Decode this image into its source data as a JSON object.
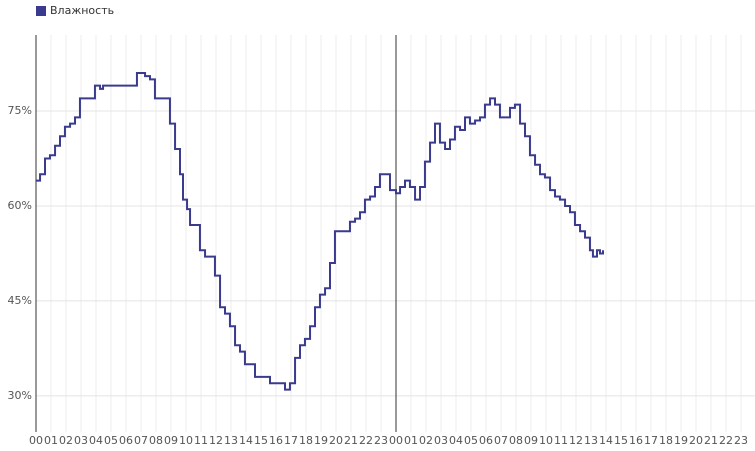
{
  "chart_data": {
    "type": "line",
    "step": true,
    "grid": true,
    "legend": "top-left",
    "series": [
      {
        "name": "Влажность",
        "color": "#3a3a8e",
        "x": [
          0,
          0.27,
          0.6,
          0.93,
          1.27,
          1.6,
          1.93,
          2.27,
          2.6,
          2.93,
          3.47,
          3.93,
          4.27,
          4.47,
          5.93,
          6.27,
          6.73,
          7.27,
          7.6,
          7.93,
          8.6,
          8.93,
          9.27,
          9.6,
          9.8,
          10.07,
          10.27,
          10.6,
          10.93,
          11.27,
          11.6,
          11.93,
          12.27,
          12.6,
          12.93,
          13.27,
          13.6,
          13.93,
          14.27,
          14.6,
          15.27,
          15.6,
          15.93,
          16.27,
          16.6,
          16.93,
          17.27,
          17.6,
          17.93,
          18.27,
          18.6,
          18.93,
          19.27,
          19.6,
          19.93,
          20.27,
          20.6,
          20.93,
          21.27,
          21.6,
          21.93,
          22.27,
          22.6,
          22.93,
          23.27,
          23.6,
          24,
          24.27,
          24.6,
          24.93,
          25.27,
          25.6,
          25.93,
          26.27,
          26.6,
          26.93,
          27.27,
          27.6,
          27.93,
          28.27,
          28.6,
          28.93,
          29.27,
          29.6,
          29.93,
          30.27,
          30.6,
          30.93,
          31.27,
          31.6,
          31.93,
          32.27,
          32.6,
          32.93,
          33.27,
          33.6,
          33.93,
          34.27,
          34.6,
          34.93,
          35.27,
          35.6,
          35.93,
          36.27,
          36.6,
          36.93,
          37.13,
          37.4,
          37.6,
          37.8
        ],
        "values": [
          64,
          65,
          67.5,
          68,
          69.5,
          71,
          72.5,
          73,
          74,
          77,
          77,
          79,
          78.5,
          79,
          79,
          79,
          81,
          80.5,
          80,
          77,
          77,
          73,
          69,
          65,
          61,
          59.5,
          57,
          57,
          53,
          52,
          52,
          49,
          44,
          43,
          41,
          38,
          37,
          35,
          35,
          33,
          33,
          32,
          32,
          32,
          31,
          32,
          36,
          38,
          39,
          41,
          44,
          46,
          47,
          51,
          56,
          56,
          56,
          57.5,
          58,
          59,
          61,
          61.5,
          63,
          65,
          65,
          62.5,
          62,
          63,
          64,
          63,
          61,
          63,
          67,
          70,
          73,
          70,
          69,
          70.5,
          72.5,
          72,
          74,
          73,
          73.5,
          74,
          76,
          77,
          76,
          74,
          74,
          75.5,
          76,
          73,
          71,
          68,
          66.5,
          65,
          64.5,
          62.5,
          61.5,
          61,
          60,
          59,
          57,
          56,
          55,
          53,
          52,
          53,
          52.5,
          53
        ]
      }
    ],
    "xlim": [
      0,
      48
    ],
    "xticks": [
      {
        "value": 0,
        "label": "00"
      },
      {
        "value": 1,
        "label": "01"
      },
      {
        "value": 2,
        "label": "02"
      },
      {
        "value": 3,
        "label": "03"
      },
      {
        "value": 4,
        "label": "04"
      },
      {
        "value": 5,
        "label": "05"
      },
      {
        "value": 6,
        "label": "06"
      },
      {
        "value": 7,
        "label": "07"
      },
      {
        "value": 8,
        "label": "08"
      },
      {
        "value": 9,
        "label": "09"
      },
      {
        "value": 10,
        "label": "10"
      },
      {
        "value": 11,
        "label": "11"
      },
      {
        "value": 12,
        "label": "12"
      },
      {
        "value": 13,
        "label": "13"
      },
      {
        "value": 14,
        "label": "14"
      },
      {
        "value": 15,
        "label": "15"
      },
      {
        "value": 16,
        "label": "16"
      },
      {
        "value": 17,
        "label": "17"
      },
      {
        "value": 18,
        "label": "18"
      },
      {
        "value": 19,
        "label": "19"
      },
      {
        "value": 20,
        "label": "20"
      },
      {
        "value": 21,
        "label": "21"
      },
      {
        "value": 22,
        "label": "22"
      },
      {
        "value": 23,
        "label": "23"
      },
      {
        "value": 24,
        "label": "00"
      },
      {
        "value": 25,
        "label": "01"
      },
      {
        "value": 26,
        "label": "02"
      },
      {
        "value": 27,
        "label": "03"
      },
      {
        "value": 28,
        "label": "04"
      },
      {
        "value": 29,
        "label": "05"
      },
      {
        "value": 30,
        "label": "06"
      },
      {
        "value": 31,
        "label": "07"
      },
      {
        "value": 32,
        "label": "08"
      },
      {
        "value": 33,
        "label": "09"
      },
      {
        "value": 34,
        "label": "10"
      },
      {
        "value": 35,
        "label": "11"
      },
      {
        "value": 36,
        "label": "12"
      },
      {
        "value": 37,
        "label": "13"
      },
      {
        "value": 38,
        "label": "14"
      },
      {
        "value": 39,
        "label": "15"
      },
      {
        "value": 40,
        "label": "16"
      },
      {
        "value": 41,
        "label": "17"
      },
      {
        "value": 42,
        "label": "18"
      },
      {
        "value": 43,
        "label": "19"
      },
      {
        "value": 44,
        "label": "20"
      },
      {
        "value": 45,
        "label": "21"
      },
      {
        "value": 46,
        "label": "22"
      },
      {
        "value": 47,
        "label": "23"
      }
    ],
    "day_lines": [
      0,
      24
    ],
    "ylim": [
      24.3,
      87
    ],
    "yticks": [
      {
        "value": 30,
        "label": "30%"
      },
      {
        "value": 45,
        "label": "45%"
      },
      {
        "value": 60,
        "label": "60%"
      },
      {
        "value": 75,
        "label": "75%"
      }
    ]
  }
}
